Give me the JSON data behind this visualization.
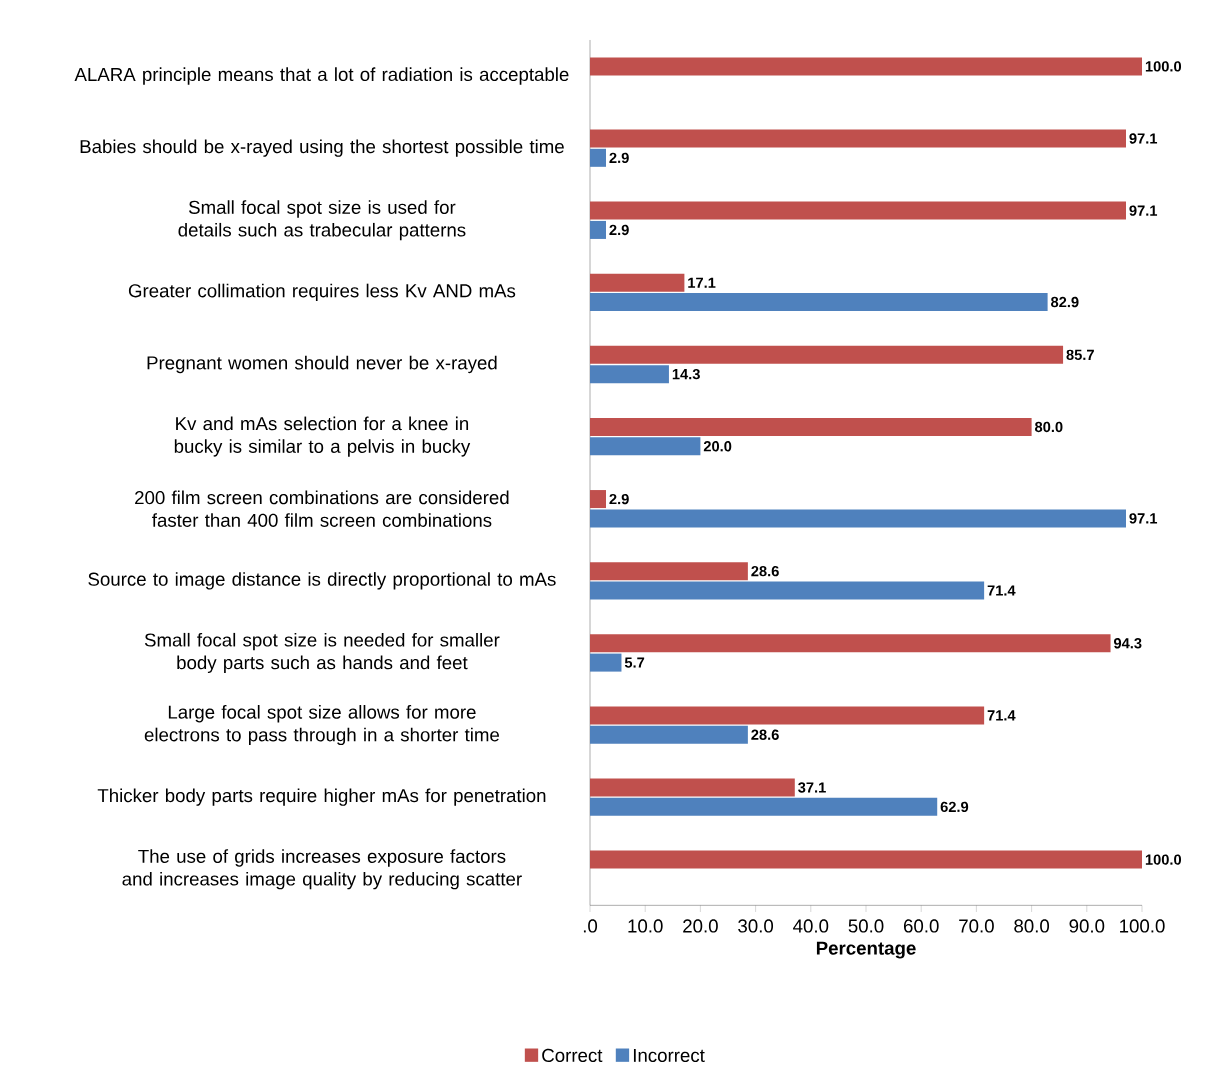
{
  "chart_data": {
    "type": "bar",
    "orientation": "horizontal",
    "xlabel": "Percentage",
    "categories": [
      "ALARA principle means that a lot of radiation is acceptable",
      "Babies should be x-rayed using  the shortest possible time",
      "Small focal spot size is used for details such as trabecular patterns",
      "Greater collimation requires less Kv AND mAs",
      "Pregnant women should never be x-rayed",
      "Kv and mAs selection for a knee in bucky is similar to a pelvis in bucky",
      "200 film screen combinations are considered faster than 400 film screen combinations",
      "Source to image distance is directly proportional to mAs",
      "Small focal spot size is needed for smaller body parts such as hands and feet",
      "Large focal spot size allows for more electrons to pass through in a shorter time",
      "Thicker body parts require higher mAs for penetration",
      "The use of grids increases exposure factors and increases image quality by reducing scatter"
    ],
    "series": [
      {
        "name": "Correct",
        "color": "#c0504d",
        "values": [
          100.0,
          97.1,
          97.1,
          17.1,
          85.7,
          80.0,
          2.9,
          28.6,
          94.3,
          71.4,
          37.1,
          100.0
        ],
        "value_labels": [
          "100.0",
          "97.1",
          "97.1",
          "17.1",
          "85.7",
          "80.0",
          "2.9",
          "28.6",
          "94.3",
          "71.4",
          "37.1",
          "100.0"
        ]
      },
      {
        "name": "Incorrect",
        "color": "#4f81bd",
        "values": [
          null,
          2.9,
          2.9,
          82.9,
          14.3,
          20.0,
          97.1,
          71.4,
          5.7,
          28.6,
          62.9,
          null
        ],
        "value_labels": [
          null,
          "2.9",
          "2.9",
          "82.9",
          "14.3",
          "20.0",
          "97.1",
          "71.4",
          "5.7",
          "28.6",
          "62.9",
          null
        ]
      }
    ],
    "xlim": [
      0,
      100
    ],
    "xticks": [
      {
        "value": 0,
        "label": ".0"
      },
      {
        "value": 10,
        "label": "10.0"
      },
      {
        "value": 20,
        "label": "20.0"
      },
      {
        "value": 30,
        "label": "30.0"
      },
      {
        "value": 40,
        "label": "40.0"
      },
      {
        "value": 50,
        "label": "50.0"
      },
      {
        "value": 60,
        "label": "60.0"
      },
      {
        "value": 70,
        "label": "70.0"
      },
      {
        "value": 80,
        "label": "80.0"
      },
      {
        "value": 90,
        "label": "90.0"
      },
      {
        "value": 100,
        "label": "100.0"
      }
    ],
    "grid": false,
    "legend": "bottom"
  }
}
